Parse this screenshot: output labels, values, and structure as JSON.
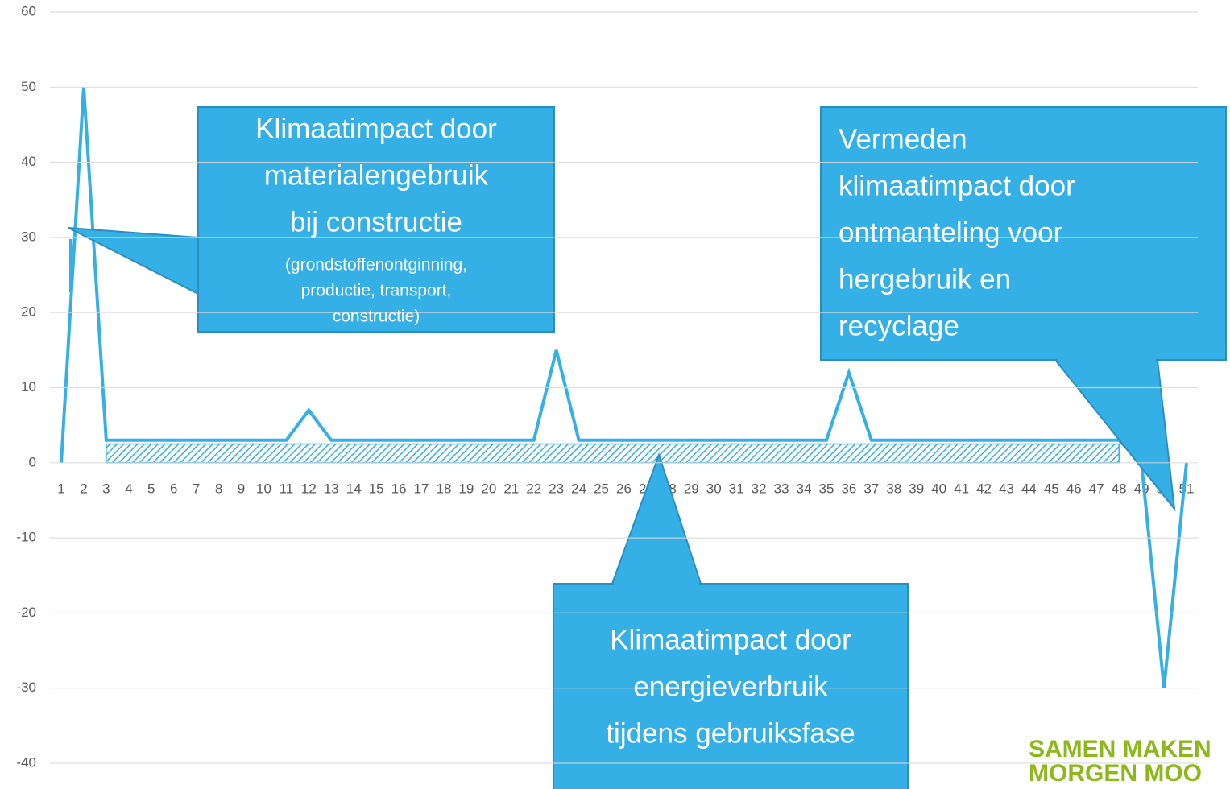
{
  "chart_data": {
    "type": "line",
    "categories": [
      "1",
      "2",
      "3",
      "4",
      "5",
      "6",
      "7",
      "8",
      "9",
      "10",
      "11",
      "12",
      "13",
      "14",
      "15",
      "16",
      "17",
      "18",
      "19",
      "20",
      "21",
      "22",
      "23",
      "24",
      "25",
      "26",
      "27",
      "28",
      "29",
      "30",
      "31",
      "32",
      "33",
      "34",
      "35",
      "36",
      "37",
      "38",
      "39",
      "40",
      "41",
      "42",
      "43",
      "44",
      "45",
      "46",
      "47",
      "48",
      "49",
      "50",
      "51"
    ],
    "series": [
      {
        "color": "#35b0e6",
        "values": [
          0,
          50,
          3,
          3,
          3,
          3,
          3,
          3,
          3,
          3,
          3,
          7,
          3,
          3,
          3,
          3,
          3,
          3,
          3,
          3,
          3,
          3,
          15,
          3,
          3,
          3,
          3,
          3,
          3,
          3,
          3,
          3,
          3,
          3,
          3,
          12,
          3,
          3,
          3,
          3,
          3,
          3,
          3,
          3,
          3,
          3,
          3,
          3,
          0,
          -30,
          0
        ]
      },
      {
        "color": "#35b0e6",
        "fill": "hatch",
        "values": [
          null,
          null,
          2.5,
          2.5,
          2.5,
          2.5,
          2.5,
          2.5,
          2.5,
          2.5,
          2.5,
          2.5,
          2.5,
          2.5,
          2.5,
          2.5,
          2.5,
          2.5,
          2.5,
          2.5,
          2.5,
          2.5,
          2.5,
          2.5,
          2.5,
          2.5,
          2.5,
          2.5,
          2.5,
          2.5,
          2.5,
          2.5,
          2.5,
          2.5,
          2.5,
          2.5,
          2.5,
          2.5,
          2.5,
          2.5,
          2.5,
          2.5,
          2.5,
          2.5,
          2.5,
          2.5,
          2.5,
          2.5,
          null,
          null,
          null
        ]
      }
    ],
    "ylim": [
      -40,
      60
    ],
    "yticks": [
      -40,
      -30,
      -20,
      -10,
      0,
      10,
      20,
      30,
      40,
      50,
      60
    ],
    "grid": true,
    "annotations": [
      {
        "lines": [
          "Klimaatimpact door",
          "materialengebruik",
          "bij constructie"
        ],
        "sublines": [
          "(grondstoffenontginning,",
          "productie, transport,",
          "constructie)"
        ]
      },
      {
        "lines": [
          "Vermeden",
          "klimaatimpact door",
          "ontmanteling voor",
          "hergebruik en",
          "recyclage"
        ]
      },
      {
        "lines": [
          "Klimaatimpact door",
          "energieverbruik",
          "tijdens gebruiksfase"
        ]
      }
    ]
  },
  "logo": {
    "lines": [
      "SAMEN MAKEN",
      "MORGEN MOO"
    ]
  }
}
